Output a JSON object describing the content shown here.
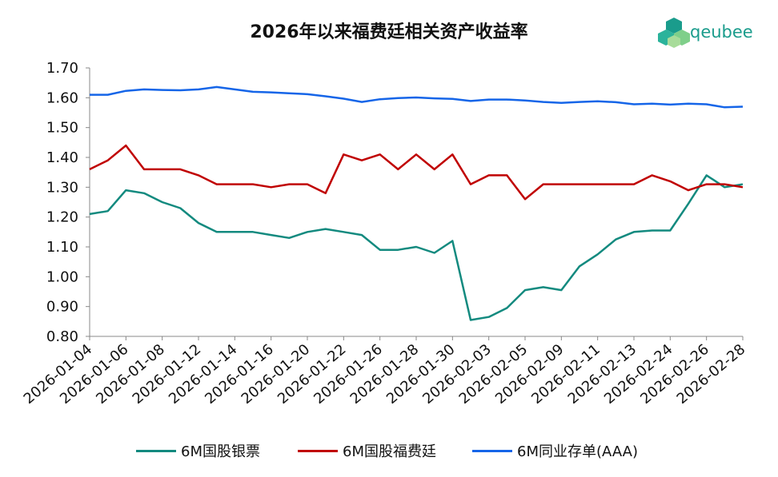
{
  "brand": {
    "name": "qeubee",
    "color": "#1a9c8c"
  },
  "chart_data": {
    "type": "line",
    "title": "2026年以来福费廷相关资产收益率",
    "xlabel": "",
    "ylabel": "",
    "ylim": [
      0.8,
      1.7
    ],
    "yticks": [
      "0.80",
      "0.90",
      "1.00",
      "1.10",
      "1.20",
      "1.30",
      "1.40",
      "1.50",
      "1.60",
      "1.70"
    ],
    "xticks": [
      "2026-01-04",
      "2026-01-06",
      "2026-01-08",
      "2026-01-12",
      "2026-01-14",
      "2026-01-16",
      "2026-01-20",
      "2026-01-22",
      "2026-01-26",
      "2026-01-28",
      "2026-01-30",
      "2026-02-03",
      "2026-02-05",
      "2026-02-09",
      "2026-02-11",
      "2026-02-13",
      "2026-02-24",
      "2026-02-26",
      "2026-02-28"
    ],
    "grid": false,
    "legend_position": "bottom",
    "series": [
      {
        "name": "6M国股银票",
        "color": "#138a7f",
        "values": [
          1.21,
          1.22,
          1.29,
          1.28,
          1.25,
          1.23,
          1.18,
          1.15,
          1.15,
          1.15,
          1.14,
          1.13,
          1.15,
          1.16,
          1.15,
          1.14,
          1.09,
          1.09,
          1.1,
          1.08,
          1.12,
          0.855,
          0.865,
          0.895,
          0.955,
          0.965,
          0.955,
          1.035,
          1.075,
          1.125,
          1.15,
          1.155,
          1.155,
          1.245,
          1.34,
          1.3,
          1.31
        ]
      },
      {
        "name": "6M国股福费廷",
        "color": "#c00000",
        "values": [
          1.36,
          1.39,
          1.44,
          1.36,
          1.36,
          1.36,
          1.34,
          1.31,
          1.31,
          1.31,
          1.3,
          1.31,
          1.31,
          1.28,
          1.41,
          1.39,
          1.41,
          1.36,
          1.41,
          1.36,
          1.41,
          1.31,
          1.34,
          1.34,
          1.26,
          1.31,
          1.31,
          1.31,
          1.31,
          1.31,
          1.31,
          1.34,
          1.32,
          1.29,
          1.31,
          1.31,
          1.3
        ]
      },
      {
        "name": "6M同业存单(AAA)",
        "color": "#1565e8",
        "values": [
          1.61,
          1.61,
          1.623,
          1.628,
          1.626,
          1.625,
          1.628,
          1.636,
          1.628,
          1.62,
          1.618,
          1.615,
          1.612,
          1.605,
          1.597,
          1.586,
          1.595,
          1.599,
          1.601,
          1.598,
          1.596,
          1.589,
          1.594,
          1.594,
          1.591,
          1.586,
          1.583,
          1.586,
          1.588,
          1.585,
          1.578,
          1.58,
          1.577,
          1.58,
          1.578,
          1.568,
          1.57
        ]
      }
    ]
  }
}
